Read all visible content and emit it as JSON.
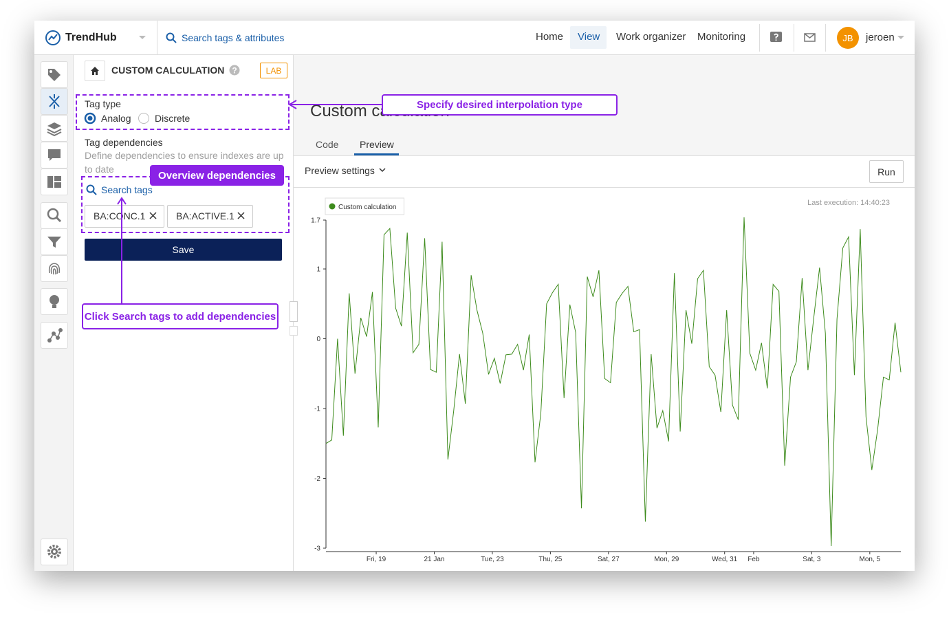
{
  "header": {
    "logo": "TrendHub",
    "search": "Search tags & attributes",
    "nav": [
      "Home",
      "View",
      "Work organizer",
      "Monitoring"
    ],
    "user_initials": "JB",
    "user_name": "jeroen"
  },
  "panel": {
    "title": "CUSTOM CALCULATION",
    "badge": "LAB",
    "tag_type_label": "Tag type",
    "tag_type_options": [
      "Analog",
      "Discrete"
    ],
    "dependencies_label": "Tag dependencies",
    "dependencies_description": "Define dependencies to ensure indexes are up to date",
    "search_tags": "Search tags",
    "tags": [
      "BA:CONC.1",
      "BA:ACTIVE.1"
    ],
    "save": "Save"
  },
  "annotations": [
    "Specify desired interpolation type",
    "Overview dependencies",
    "Click Search tags to add dependencies"
  ],
  "main": {
    "title": "Custom calculation",
    "tabs": [
      "Code",
      "Preview"
    ],
    "preview_settings": "Preview settings",
    "run": "Run",
    "last_execution": "Last execution: 14:40:23"
  },
  "chart_data": {
    "type": "line",
    "x": [
      17.27,
      17.47,
      17.67,
      17.87,
      18.07,
      18.27,
      18.47,
      18.67,
      18.87,
      19.07,
      19.27,
      19.47,
      19.67,
      19.87,
      20.07,
      20.27,
      20.47,
      20.67,
      20.87,
      21.07,
      21.27,
      21.47,
      21.67,
      21.87,
      22.07,
      22.27,
      22.47,
      22.67,
      22.87,
      23.07,
      23.27,
      23.47,
      23.67,
      23.87,
      24.07,
      24.27,
      24.47,
      24.67,
      24.87,
      25.07,
      25.27,
      25.47,
      25.67,
      25.87,
      26.07,
      26.27,
      26.47,
      26.67,
      26.87,
      27.07,
      27.27,
      27.47,
      27.67,
      27.87,
      28.07,
      28.27,
      28.47,
      28.67,
      28.87,
      29.07,
      29.27,
      29.47,
      29.67,
      29.87,
      30.07,
      30.27,
      30.47,
      30.67,
      30.87,
      31.07,
      31.27,
      31.47,
      31.67,
      31.87,
      32.07,
      32.27,
      32.47,
      32.67,
      32.87,
      33.07,
      33.27,
      33.47,
      33.67,
      33.87,
      34.07,
      34.27,
      34.47,
      34.67,
      34.87,
      35.07,
      35.27,
      35.47,
      35.67,
      35.87,
      36.07,
      36.27,
      36.47,
      36.67,
      36.87,
      37.07
    ],
    "series": [
      {
        "name": "Custom calculation",
        "color": "#3d8b1c",
        "values": [
          -1.5,
          -1.45,
          0,
          -1.39,
          0.65,
          -0.5,
          0.3,
          0.03,
          0.67,
          -1.27,
          1.49,
          1.58,
          0.44,
          0.18,
          1.52,
          -0.2,
          -0.08,
          1.44,
          -0.44,
          -0.48,
          1.39,
          -1.73,
          -1.03,
          -0.22,
          -0.93,
          0.91,
          0.41,
          0.08,
          -0.51,
          -0.28,
          -0.64,
          -0.23,
          -0.22,
          -0.08,
          -0.45,
          0.06,
          -1.77,
          -1.07,
          0.5,
          0.66,
          0.78,
          -0.85,
          0.49,
          0.09,
          -2.43,
          0.89,
          0.6,
          0.98,
          -0.57,
          -0.63,
          0.52,
          0.65,
          0.75,
          0.1,
          0.13,
          -2.62,
          -0.22,
          -1.28,
          -1.03,
          -1.47,
          0.94,
          -1.33,
          0.41,
          -0.07,
          0.86,
          0.98,
          -0.4,
          -0.52,
          -1.05,
          0.41,
          -0.95,
          -1.16,
          1.74,
          -0.21,
          -0.45,
          -0.06,
          -0.71,
          0.78,
          0.68,
          -1.82,
          -0.55,
          -0.33,
          0.87,
          -0.45,
          0.3,
          1.02,
          0.08,
          -2.97,
          0.28,
          1.3,
          1.46,
          -0.52,
          1.57,
          -1.12,
          -1.88,
          -1.3,
          -0.55,
          -0.59,
          0.23,
          -0.48
        ]
      }
    ],
    "xlim": [
      17.27,
      37.07
    ],
    "xticks": [
      {
        "value": 19,
        "label": "Fri, 19"
      },
      {
        "value": 21,
        "label": "21 Jan"
      },
      {
        "value": 23,
        "label": "Tue, 23"
      },
      {
        "value": 25,
        "label": "Thu, 25"
      },
      {
        "value": 27,
        "label": "Sat, 27"
      },
      {
        "value": 29,
        "label": "Mon, 29"
      },
      {
        "value": 31,
        "label": "Wed, 31"
      },
      {
        "value": 32,
        "label": "Feb"
      },
      {
        "value": 34,
        "label": "Sat, 3"
      },
      {
        "value": 36,
        "label": "Mon, 5"
      }
    ],
    "ylim": [
      -3,
      1.7
    ],
    "yticks": [
      1.7,
      1,
      0,
      -1,
      -2,
      -3
    ]
  }
}
